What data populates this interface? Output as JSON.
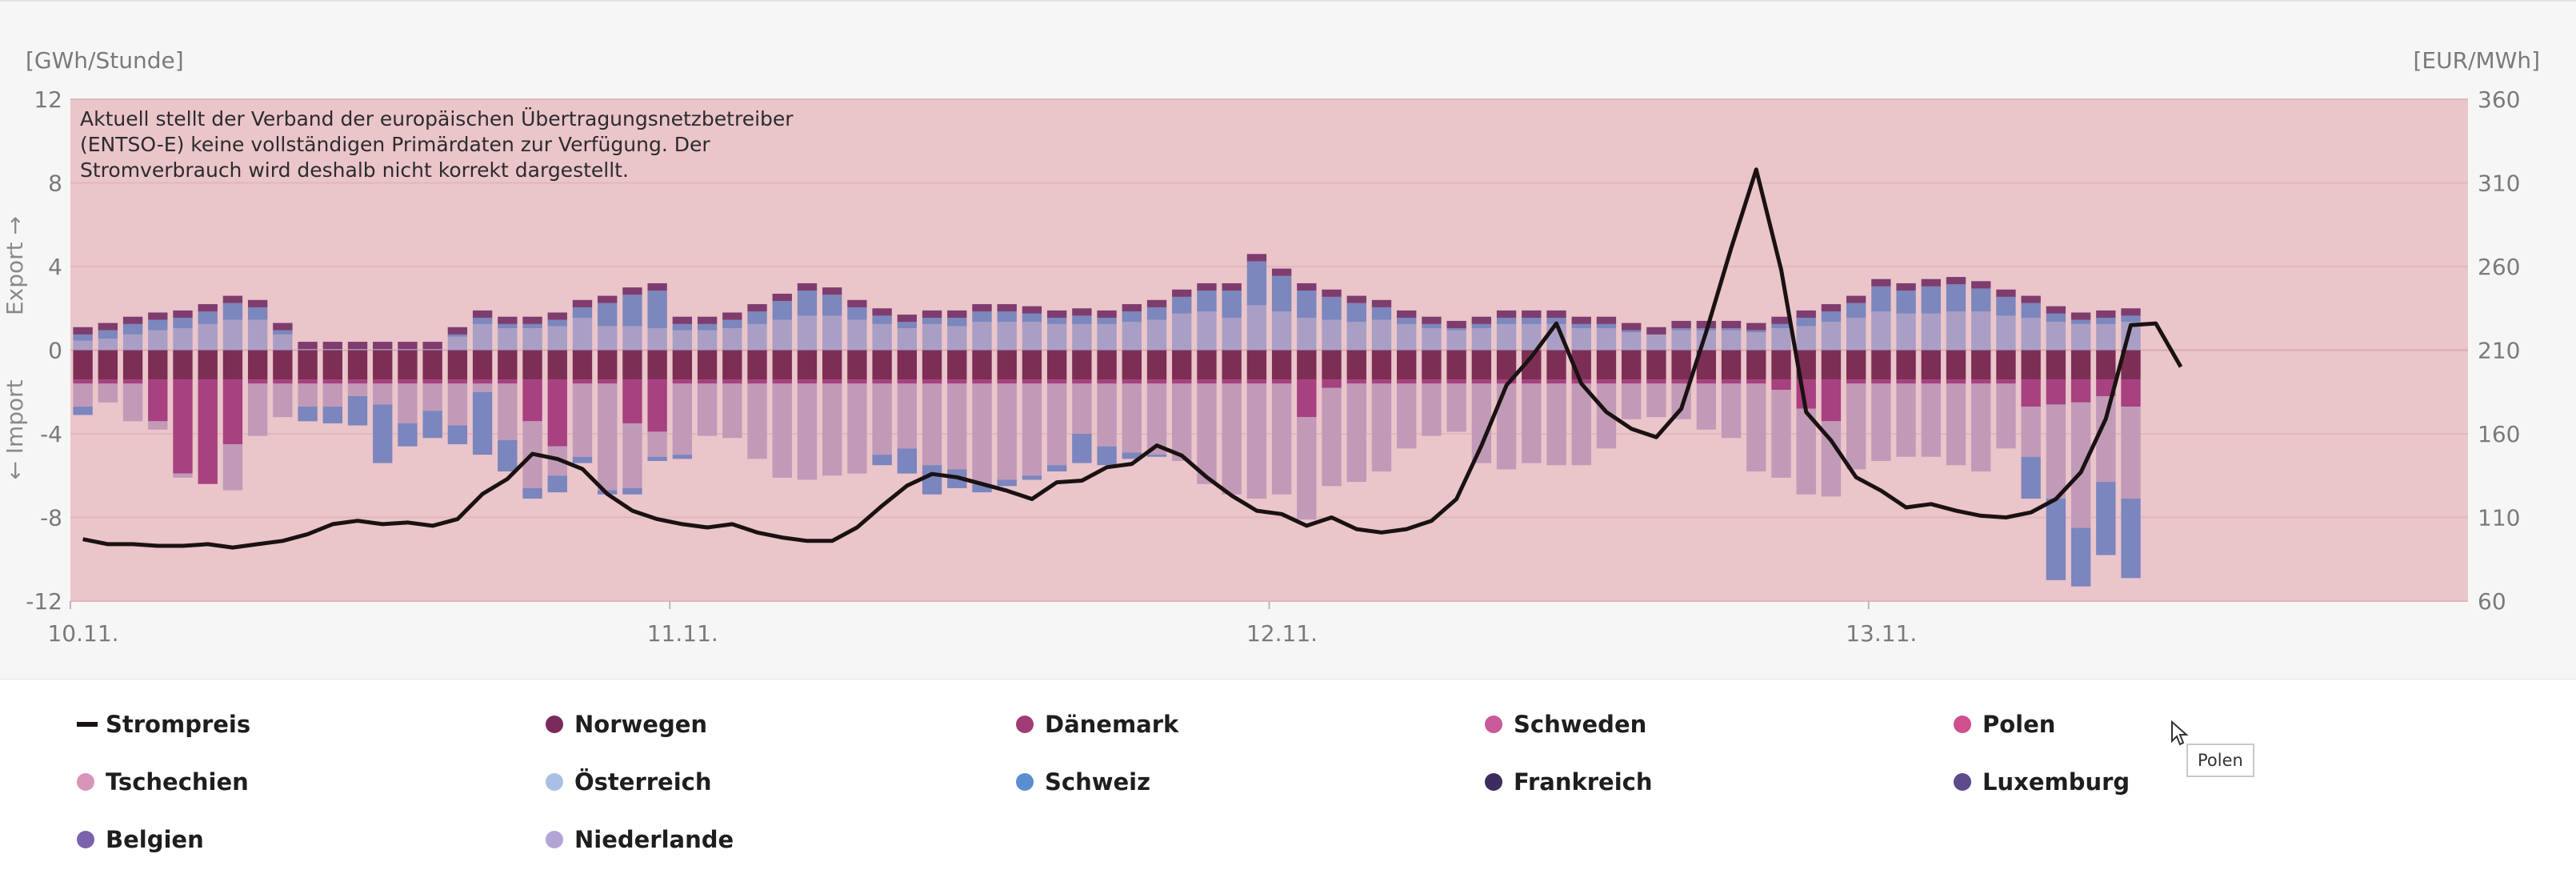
{
  "chart": {
    "left_unit": "[GWh/Stunde]",
    "right_unit": "[EUR/MWh]",
    "export_label": "Export →",
    "import_label": "← Import",
    "notice_lines": [
      "Aktuell stellt der Verband der europäischen Übertragungsnetzbetreiber",
      "(ENTSO-E) keine vollständigen Primärdaten zur Verfügung. Der",
      "Stromverbrauch wird deshalb nicht korrekt dargestellt."
    ],
    "tooltip": "Polen"
  },
  "chart_data": {
    "type": "bar",
    "title": "",
    "xlabel": "",
    "ylabel": "[GWh/Stunde]",
    "y2label": "[EUR/MWh]",
    "ylim": [
      -12,
      12
    ],
    "y2lim": [
      60,
      360
    ],
    "yticks": [
      12,
      8,
      4,
      0,
      -4,
      -8,
      -12
    ],
    "y2ticks": [
      360,
      310,
      260,
      210,
      160,
      110,
      60
    ],
    "hours_per_day": 24,
    "x_day_labels": [
      "10.11.",
      "11.11.",
      "12.11.",
      "13.11."
    ],
    "total_hours": 96,
    "bar_count": 83,
    "colors": {
      "Norwegen": "#7b2a5c",
      "Daenemark": "#a13b78",
      "Schweden": "#c85a9a",
      "Polen": "#cf4f8f",
      "Tschechien": "#d895b9",
      "Oesterreich": "#a9c0e4",
      "Schweiz": "#5b8ed0",
      "Frankreich": "#3d2d5e",
      "Luxemburg": "#5d4a8c",
      "Belgien": "#7a63ac",
      "Niederlande": "#b3a4d6",
      "Strompreis": "#1a1212",
      "plot_background": "#eac5ca",
      "bar_norwegen_import": "#7d2e55",
      "bar_export_dark": "#7e3d6e",
      "bar_export_light": "#a99fc4",
      "bar_export_blue": "#7b87bd",
      "bar_import_light": "#c09ab7",
      "bar_import_blue": "#7b85be",
      "bar_import_magenta": "#a7417f"
    },
    "series": [
      {
        "name": "Export gesamt",
        "values": [
          1.1,
          1.3,
          1.6,
          1.8,
          1.9,
          2.2,
          2.6,
          2.4,
          1.3,
          0.4,
          0.4,
          0.4,
          0.4,
          0.4,
          0.4,
          1.1,
          1.9,
          1.6,
          1.6,
          1.8,
          2.4,
          2.6,
          3.0,
          3.2,
          1.6,
          1.6,
          1.8,
          2.2,
          2.7,
          3.2,
          3.0,
          2.4,
          2.0,
          1.7,
          1.9,
          1.9,
          2.2,
          2.2,
          2.1,
          1.9,
          2.0,
          1.9,
          2.2,
          2.4,
          2.9,
          3.2,
          3.2,
          4.6,
          3.9,
          3.2,
          2.9,
          2.6,
          2.4,
          1.9,
          1.6,
          1.4,
          1.6,
          1.9,
          1.9,
          1.9,
          1.6,
          1.6,
          1.3,
          1.1,
          1.4,
          1.4,
          1.4,
          1.3,
          1.6,
          1.9,
          2.2,
          2.6,
          3.4,
          3.2,
          3.4,
          3.5,
          3.3,
          2.9,
          2.6,
          2.1,
          1.8,
          1.9,
          2.0
        ]
      },
      {
        "name": "Export blau",
        "values": [
          0.3,
          0.4,
          0.5,
          0.5,
          0.5,
          0.6,
          0.8,
          0.6,
          0.2,
          0,
          0,
          0,
          0,
          0,
          0,
          0.1,
          0.3,
          0.2,
          0.2,
          0.3,
          0.5,
          1.1,
          1.5,
          1.8,
          0.3,
          0.3,
          0.4,
          0.6,
          0.9,
          1.2,
          1.0,
          0.6,
          0.4,
          0.3,
          0.3,
          0.4,
          0.5,
          0.5,
          0.4,
          0.3,
          0.4,
          0.3,
          0.5,
          0.6,
          0.8,
          1.0,
          1.3,
          2.1,
          1.7,
          1.3,
          1.1,
          0.9,
          0.6,
          0.3,
          0.2,
          0.1,
          0.2,
          0.3,
          0.3,
          0.3,
          0.2,
          0.2,
          0.1,
          0,
          0.1,
          0.1,
          0.1,
          0.1,
          0.2,
          0.4,
          0.5,
          0.7,
          1.2,
          1.1,
          1.3,
          1.3,
          1.1,
          0.9,
          0.7,
          0.4,
          0.2,
          0.3,
          0.3
        ]
      },
      {
        "name": "Import gesamt",
        "values": [
          -3.1,
          -2.5,
          -3.4,
          -3.8,
          -6.1,
          -6.4,
          -6.7,
          -4.1,
          -3.2,
          -3.4,
          -3.5,
          -3.6,
          -5.4,
          -4.6,
          -4.2,
          -4.5,
          -5.0,
          -5.8,
          -7.1,
          -6.8,
          -5.4,
          -6.9,
          -6.9,
          -5.3,
          -5.2,
          -4.1,
          -4.2,
          -5.2,
          -6.1,
          -6.2,
          -6.0,
          -5.9,
          -5.5,
          -5.9,
          -6.9,
          -6.6,
          -6.8,
          -6.5,
          -6.2,
          -5.8,
          -5.4,
          -5.5,
          -5.2,
          -5.1,
          -5.3,
          -6.4,
          -6.9,
          -7.1,
          -6.9,
          -8.1,
          -6.5,
          -6.3,
          -5.8,
          -4.7,
          -4.1,
          -3.9,
          -5.4,
          -5.7,
          -5.4,
          -5.5,
          -5.5,
          -4.7,
          -3.3,
          -3.2,
          -3.3,
          -3.8,
          -4.2,
          -5.8,
          -6.1,
          -6.9,
          -7.0,
          -5.7,
          -5.3,
          -5.1,
          -5.1,
          -5.5,
          -5.8,
          -4.7,
          -7.1,
          -11.0,
          -11.3,
          -9.8,
          -10.9
        ]
      },
      {
        "name": "Import blau",
        "values": [
          -0.4,
          0,
          0,
          0,
          0,
          0,
          0,
          0,
          0,
          -0.7,
          -0.8,
          -1.4,
          -2.8,
          -1.1,
          -1.3,
          -0.9,
          -3.0,
          -1.5,
          -0.5,
          -0.8,
          -0.3,
          -0.2,
          -0.3,
          -0.2,
          -0.2,
          0,
          0,
          0,
          0,
          0,
          0,
          0,
          -0.5,
          -1.2,
          -1.4,
          -0.9,
          -0.4,
          -0.3,
          -0.2,
          -0.3,
          -1.4,
          -0.9,
          -0.3,
          -0.1,
          0,
          0,
          0,
          0,
          0,
          0,
          0,
          0,
          0,
          0,
          0,
          0,
          0,
          0,
          0,
          0,
          0,
          0,
          0,
          0,
          0,
          0,
          0,
          0,
          0,
          0,
          0,
          0,
          0,
          0,
          0,
          0,
          0,
          0,
          -2.0,
          -3.9,
          -2.8,
          -3.5,
          -3.8
        ]
      },
      {
        "name": "Import magenta",
        "values": [
          -0.2,
          -0.2,
          -0.2,
          -2.0,
          -4.5,
          -5.0,
          -3.1,
          -0.2,
          -0.2,
          -0.2,
          -0.2,
          -0.2,
          -0.2,
          -0.2,
          -0.2,
          -0.2,
          -0.2,
          -0.2,
          -2.0,
          -3.2,
          -0.2,
          -0.2,
          -2.1,
          -2.5,
          -0.2,
          -0.2,
          -0.2,
          -0.2,
          -0.2,
          -0.2,
          -0.2,
          -0.2,
          -0.2,
          -0.2,
          -0.2,
          -0.2,
          -0.2,
          -0.2,
          -0.2,
          -0.2,
          -0.2,
          -0.2,
          -0.2,
          -0.2,
          -0.2,
          -0.2,
          -0.2,
          -0.2,
          -0.2,
          -1.8,
          -0.4,
          -0.2,
          -0.2,
          -0.2,
          -0.2,
          -0.2,
          -0.2,
          -0.2,
          -0.2,
          -0.2,
          -0.2,
          -0.2,
          -0.2,
          -0.2,
          -0.2,
          -0.2,
          -0.2,
          -0.2,
          -0.5,
          -1.4,
          -2.0,
          -0.2,
          -0.2,
          -0.2,
          -0.2,
          -0.2,
          -0.2,
          -0.2,
          -1.3,
          -1.2,
          -1.1,
          -0.8,
          -1.3
        ]
      },
      {
        "name": "Strompreis",
        "values": [
          97,
          94,
          94,
          93,
          93,
          94,
          92,
          94,
          96,
          100,
          106,
          108,
          106,
          107,
          105,
          109,
          124,
          133,
          148,
          145,
          139,
          124,
          114,
          109,
          106,
          104,
          106,
          101,
          98,
          96,
          96,
          104,
          117,
          129,
          136,
          134,
          130,
          126,
          121,
          131,
          132,
          140,
          142,
          153,
          147,
          134,
          123,
          114,
          112,
          105,
          110,
          103,
          101,
          103,
          108,
          121,
          153,
          189,
          206,
          226,
          190,
          173,
          163,
          158,
          175,
          221,
          271,
          318,
          258,
          173,
          156,
          134,
          126,
          116,
          118,
          114,
          111,
          110,
          113,
          121,
          137,
          169,
          225,
          226,
          200
        ]
      }
    ],
    "legend_position": "bottom"
  },
  "legend": [
    {
      "label": "Strompreis",
      "color": "#1a1212",
      "shape": "line"
    },
    {
      "label": "Norwegen",
      "color": "#7b2a5c",
      "shape": "dot"
    },
    {
      "label": "Dänemark",
      "color": "#a13b78",
      "shape": "dot"
    },
    {
      "label": "Schweden",
      "color": "#c85a9a",
      "shape": "dot"
    },
    {
      "label": "Polen",
      "color": "#cf4f8f",
      "shape": "dot"
    },
    {
      "label": "Tschechien",
      "color": "#d895b9",
      "shape": "dot"
    },
    {
      "label": "Österreich",
      "color": "#a9c0e4",
      "shape": "dot"
    },
    {
      "label": "Schweiz",
      "color": "#5b8ed0",
      "shape": "dot"
    },
    {
      "label": "Frankreich",
      "color": "#3d2d5e",
      "shape": "dot"
    },
    {
      "label": "Luxemburg",
      "color": "#5d4a8c",
      "shape": "dot"
    },
    {
      "label": "Belgien",
      "color": "#7a63ac",
      "shape": "dot"
    },
    {
      "label": "Niederlande",
      "color": "#b3a4d6",
      "shape": "dot"
    }
  ]
}
